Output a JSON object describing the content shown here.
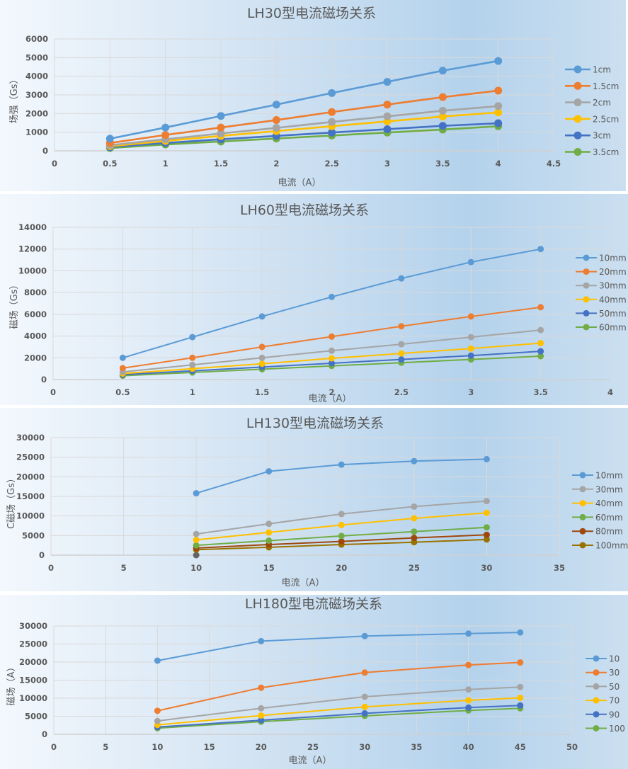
{
  "chart_data": [
    {
      "type": "line",
      "title": "LH30型电流磁场关系",
      "xlabel": "电流（A）",
      "ylabel": "场强（Gs）",
      "xlim": [
        0,
        4.5
      ],
      "ylim": [
        0,
        6000
      ],
      "xticks": [
        "0",
        "0.5",
        "1",
        "1.5",
        "2",
        "2.5",
        "3",
        "3.5",
        "4",
        "4.5"
      ],
      "yticks": [
        "0",
        "1000",
        "2000",
        "3000",
        "4000",
        "5000",
        "6000"
      ],
      "grid": true,
      "legend": "right",
      "x": [
        0.5,
        1,
        1.5,
        2,
        2.5,
        3,
        3.5,
        4
      ],
      "series": [
        {
          "name": "1cm",
          "color": "#5b9bd5",
          "values": [
            650,
            1250,
            1870,
            2480,
            3100,
            3700,
            4300,
            4820
          ]
        },
        {
          "name": "1.5cm",
          "color": "#ed7d31",
          "values": [
            420,
            850,
            1250,
            1650,
            2080,
            2480,
            2880,
            3230
          ]
        },
        {
          "name": "2cm",
          "color": "#a5a5a5",
          "values": [
            300,
            620,
            930,
            1230,
            1550,
            1850,
            2150,
            2400
          ]
        },
        {
          "name": "2.5cm",
          "color": "#ffc000",
          "values": [
            250,
            530,
            800,
            1060,
            1320,
            1580,
            1840,
            2060
          ]
        },
        {
          "name": "3cm",
          "color": "#4472c4",
          "values": [
            200,
            420,
            620,
            800,
            980,
            1160,
            1340,
            1480
          ]
        },
        {
          "name": "3.5cm",
          "color": "#70ad47",
          "values": [
            150,
            340,
            500,
            660,
            820,
            980,
            1140,
            1320
          ]
        }
      ]
    },
    {
      "type": "line",
      "title": "LH60型电流磁场关系",
      "xlabel": "电流（A）",
      "ylabel": "磁场（Gs）",
      "xlim": [
        0,
        4
      ],
      "ylim": [
        0,
        14000
      ],
      "xticks": [
        "0",
        "0.5",
        "1",
        "1.5",
        "2",
        "2.5",
        "3",
        "3.5",
        "4"
      ],
      "yticks": [
        "0",
        "2000",
        "4000",
        "6000",
        "8000",
        "10000",
        "12000",
        "14000"
      ],
      "grid": true,
      "legend": "right",
      "x": [
        0.5,
        1,
        1.5,
        2,
        2.5,
        3,
        3.5
      ],
      "series": [
        {
          "name": "10mm",
          "color": "#5b9bd5",
          "values": [
            2000,
            3900,
            5800,
            7600,
            9300,
            10800,
            12000
          ]
        },
        {
          "name": "20mm",
          "color": "#ed7d31",
          "values": [
            1050,
            2000,
            3000,
            3950,
            4900,
            5800,
            6650
          ]
        },
        {
          "name": "30mm",
          "color": "#a5a5a5",
          "values": [
            700,
            1350,
            2000,
            2650,
            3250,
            3900,
            4550
          ]
        },
        {
          "name": "40mm",
          "color": "#ffc000",
          "values": [
            550,
            1000,
            1450,
            1950,
            2400,
            2850,
            3350
          ]
        },
        {
          "name": "50mm",
          "color": "#4472c4",
          "values": [
            450,
            800,
            1150,
            1500,
            1850,
            2200,
            2600
          ]
        },
        {
          "name": "60mm",
          "color": "#70ad47",
          "values": [
            350,
            650,
            950,
            1250,
            1550,
            1850,
            2150
          ]
        }
      ]
    },
    {
      "type": "line",
      "title": "LH130型电流磁场关系",
      "xlabel": "电流（A）",
      "ylabel": "C磁场（Gs）",
      "xlim": [
        0,
        35
      ],
      "ylim": [
        0,
        30000
      ],
      "xticks": [
        "0",
        "5",
        "10",
        "15",
        "20",
        "25",
        "30",
        "35"
      ],
      "yticks": [
        "0",
        "5000",
        "10000",
        "15000",
        "20000",
        "25000",
        "30000"
      ],
      "grid": true,
      "legend": "right",
      "x": [
        10,
        15,
        20,
        25,
        30
      ],
      "series": [
        {
          "name": "10mm",
          "color": "#5b9bd5",
          "values": [
            15800,
            21400,
            23100,
            24000,
            24500
          ]
        },
        {
          "name": "30mm",
          "color": "#a5a5a5",
          "values": [
            5400,
            8000,
            10500,
            12400,
            13800
          ]
        },
        {
          "name": "40mm",
          "color": "#ffc000",
          "values": [
            3900,
            5800,
            7700,
            9400,
            10800
          ]
        },
        {
          "name": "60mm",
          "color": "#70ad47",
          "values": [
            2500,
            3700,
            4900,
            6000,
            7100
          ]
        },
        {
          "name": "80mm",
          "color": "#9e480e",
          "values": [
            1800,
            2700,
            3500,
            4400,
            5200
          ]
        },
        {
          "name": "100mm",
          "color": "#997300",
          "values": [
            1400,
            2000,
            2700,
            3300,
            4000
          ]
        }
      ],
      "extra_points": [
        {
          "x": 10,
          "y": 0,
          "color": "#636363",
          "in_legend": false
        }
      ]
    },
    {
      "type": "line",
      "title": "LH180型电流磁场关系",
      "xlabel": "电流（A）",
      "ylabel": "磁场（A）",
      "xlim": [
        0,
        50
      ],
      "ylim": [
        0,
        30000
      ],
      "xticks": [
        "0",
        "5",
        "10",
        "15",
        "20",
        "25",
        "30",
        "35",
        "40",
        "45",
        "50"
      ],
      "yticks": [
        "0",
        "5000",
        "10000",
        "15000",
        "20000",
        "25000",
        "30000"
      ],
      "grid": true,
      "legend": "right",
      "x": [
        10,
        20,
        30,
        40,
        45
      ],
      "series": [
        {
          "name": "10",
          "color": "#5b9bd5",
          "values": [
            20400,
            25800,
            27200,
            27900,
            28200
          ]
        },
        {
          "name": "30",
          "color": "#ed7d31",
          "values": [
            6500,
            12900,
            17100,
            19200,
            19900
          ]
        },
        {
          "name": "50",
          "color": "#a5a5a5",
          "values": [
            3700,
            7200,
            10400,
            12400,
            13100
          ]
        },
        {
          "name": "70",
          "color": "#ffc000",
          "values": [
            2600,
            5200,
            7600,
            9400,
            10100
          ]
        },
        {
          "name": "90",
          "color": "#4472c4",
          "values": [
            2000,
            3900,
            5800,
            7400,
            8000
          ]
        },
        {
          "name": "100",
          "color": "#70ad47",
          "values": [
            1700,
            3500,
            5100,
            6600,
            7200
          ]
        }
      ]
    }
  ]
}
